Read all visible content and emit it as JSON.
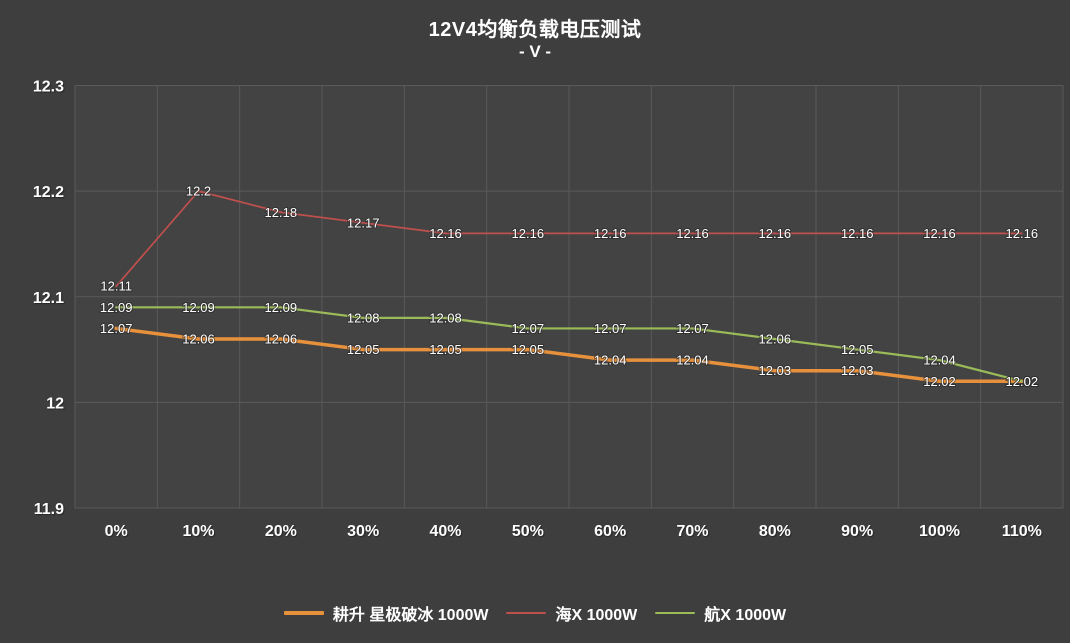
{
  "chart_data": {
    "type": "line",
    "title": "12V4均衡负载电压测试",
    "subtitle": "- V -",
    "categories": [
      "0%",
      "10%",
      "20%",
      "30%",
      "40%",
      "50%",
      "60%",
      "70%",
      "80%",
      "90%",
      "100%",
      "110%"
    ],
    "series": [
      {
        "name": "耕升 星极破冰 1000W",
        "color": "#E8913D",
        "line_width": 3.5,
        "values": [
          12.07,
          12.06,
          12.06,
          12.05,
          12.05,
          12.05,
          12.04,
          12.04,
          12.03,
          12.03,
          12.02,
          12.02
        ]
      },
      {
        "name": "海X 1000W",
        "color": "#C0504D",
        "line_width": 1.7,
        "values": [
          12.11,
          12.2,
          12.18,
          12.17,
          12.16,
          12.16,
          12.16,
          12.16,
          12.16,
          12.16,
          12.16,
          12.16
        ]
      },
      {
        "name": "航X 1000W",
        "color": "#9BBB59",
        "line_width": 2.2,
        "values": [
          12.09,
          12.09,
          12.09,
          12.08,
          12.08,
          12.07,
          12.07,
          12.07,
          12.06,
          12.05,
          12.04,
          12.02
        ]
      }
    ],
    "xlabel": "",
    "ylabel": "",
    "ylim": [
      11.9,
      12.3
    ],
    "yticks": [
      12.3,
      12.2,
      12.1,
      12,
      11.9
    ],
    "grid": true,
    "data_labels": "center",
    "legend_position": "bottom",
    "colors": {
      "background": "#3E3E3E",
      "plot_background": "#434343",
      "gridline": "#5A5A5A",
      "text": "#FFFFFF"
    }
  }
}
